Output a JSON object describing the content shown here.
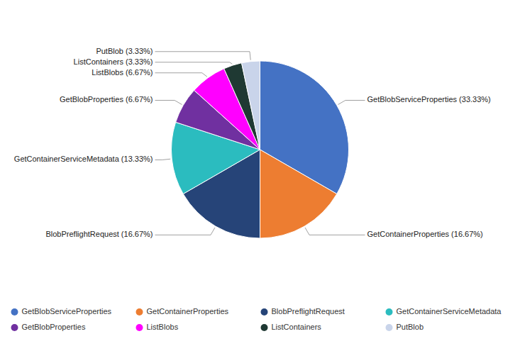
{
  "chart_data": {
    "type": "pie",
    "categories": [
      "GetBlobServiceProperties",
      "GetContainerProperties",
      "BlobPreflightRequest",
      "GetContainerServiceMetadata",
      "GetBlobProperties",
      "ListBlobs",
      "ListContainers",
      "PutBlob"
    ],
    "values": [
      33.33,
      16.67,
      16.67,
      13.33,
      6.67,
      6.67,
      3.33,
      3.33
    ],
    "colors": [
      "#4472C4",
      "#ED7D31",
      "#264478",
      "#2BBCBF",
      "#7030A0",
      "#FF00FF",
      "#1F3933",
      "#C9D4EA"
    ],
    "value_labels": [
      "GetBlobServiceProperties (33.33%)",
      "GetContainerProperties (16.67%)",
      "BlobPreflightRequest (16.67%)",
      "GetContainerServiceMetadata (13.33%)",
      "GetBlobProperties (6.67%)",
      "ListBlobs (6.67%)",
      "ListContainers (3.33%)",
      "PutBlob (3.33%)"
    ],
    "data_labels": true,
    "legend": "bottom"
  }
}
